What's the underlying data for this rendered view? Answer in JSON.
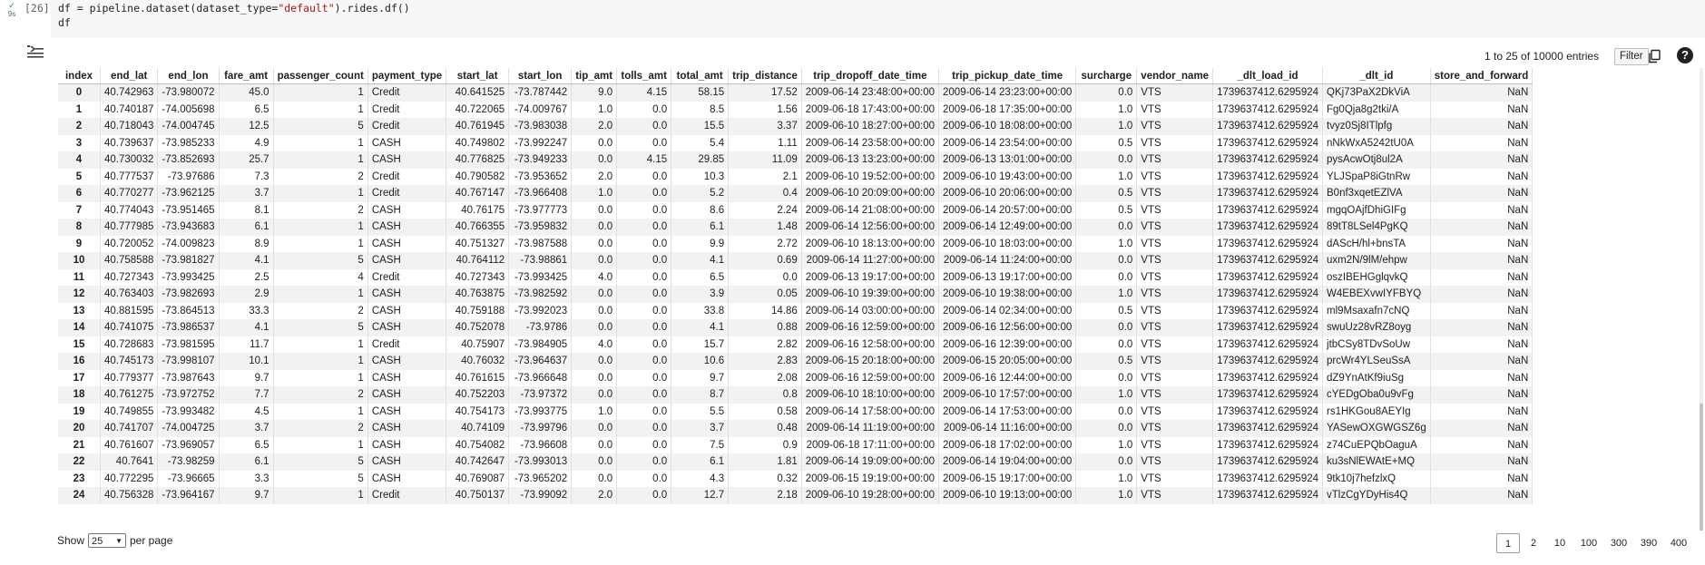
{
  "cell": {
    "status_check": "✓",
    "status_time": "9s",
    "exec_count": "[26]",
    "code_line1_a": "df = pipeline.dataset(dataset_type=",
    "code_line1_str": "\"default\"",
    "code_line1_b": ").rides.df()",
    "code_line2": "df"
  },
  "output": {
    "entries_text": "1 to 25 of 10000 entries",
    "filter_label": "Filter",
    "help_label": "?"
  },
  "table": {
    "columns": [
      "index",
      "end_lat",
      "end_lon",
      "fare_amt",
      "passenger_count",
      "payment_type",
      "start_lat",
      "start_lon",
      "tip_amt",
      "tolls_amt",
      "total_amt",
      "trip_distance",
      "trip_dropoff_date_time",
      "trip_pickup_date_time",
      "surcharge",
      "vendor_name",
      "_dlt_load_id",
      "_dlt_id",
      "store_and_forward"
    ],
    "rows": [
      [
        "0",
        "40.742963",
        "-73.980072",
        "45.0",
        "1",
        "Credit",
        "40.641525",
        "-73.787442",
        "9.0",
        "4.15",
        "58.15",
        "17.52",
        "2009-06-14 23:48:00+00:00",
        "2009-06-14 23:23:00+00:00",
        "0.0",
        "VTS",
        "1739637412.6295924",
        "QKj73PaX2DkViA",
        "NaN"
      ],
      [
        "1",
        "40.740187",
        "-74.005698",
        "6.5",
        "1",
        "Credit",
        "40.722065",
        "-74.009767",
        "1.0",
        "0.0",
        "8.5",
        "1.56",
        "2009-06-18 17:43:00+00:00",
        "2009-06-18 17:35:00+00:00",
        "1.0",
        "VTS",
        "1739637412.6295924",
        "Fg0Qja8g2tki/A",
        "NaN"
      ],
      [
        "2",
        "40.718043",
        "-74.004745",
        "12.5",
        "5",
        "Credit",
        "40.761945",
        "-73.983038",
        "2.0",
        "0.0",
        "15.5",
        "3.37",
        "2009-06-10 18:27:00+00:00",
        "2009-06-10 18:08:00+00:00",
        "1.0",
        "VTS",
        "1739637412.6295924",
        "tvyz0Sj8ITlpfg",
        "NaN"
      ],
      [
        "3",
        "40.739637",
        "-73.985233",
        "4.9",
        "1",
        "CASH",
        "40.749802",
        "-73.992247",
        "0.0",
        "0.0",
        "5.4",
        "1.11",
        "2009-06-14 23:58:00+00:00",
        "2009-06-14 23:54:00+00:00",
        "0.5",
        "VTS",
        "1739637412.6295924",
        "nNkWxA5242tU0A",
        "NaN"
      ],
      [
        "4",
        "40.730032",
        "-73.852693",
        "25.7",
        "1",
        "CASH",
        "40.776825",
        "-73.949233",
        "0.0",
        "4.15",
        "29.85",
        "11.09",
        "2009-06-13 13:23:00+00:00",
        "2009-06-13 13:01:00+00:00",
        "0.0",
        "VTS",
        "1739637412.6295924",
        "pysAcwOtj8ul2A",
        "NaN"
      ],
      [
        "5",
        "40.777537",
        "-73.97686",
        "7.3",
        "2",
        "Credit",
        "40.790582",
        "-73.953652",
        "2.0",
        "0.0",
        "10.3",
        "2.1",
        "2009-06-10 19:52:00+00:00",
        "2009-06-10 19:43:00+00:00",
        "1.0",
        "VTS",
        "1739637412.6295924",
        "YLJSpaP8iGtnRw",
        "NaN"
      ],
      [
        "6",
        "40.770277",
        "-73.962125",
        "3.7",
        "1",
        "Credit",
        "40.767147",
        "-73.966408",
        "1.0",
        "0.0",
        "5.2",
        "0.4",
        "2009-06-10 20:09:00+00:00",
        "2009-06-10 20:06:00+00:00",
        "0.5",
        "VTS",
        "1739637412.6295924",
        "B0nf3xqetEZlVA",
        "NaN"
      ],
      [
        "7",
        "40.774043",
        "-73.951465",
        "8.1",
        "2",
        "CASH",
        "40.76175",
        "-73.977773",
        "0.0",
        "0.0",
        "8.6",
        "2.24",
        "2009-06-14 21:08:00+00:00",
        "2009-06-14 20:57:00+00:00",
        "0.5",
        "VTS",
        "1739637412.6295924",
        "mgqOAjfDhiGIFg",
        "NaN"
      ],
      [
        "8",
        "40.777985",
        "-73.943683",
        "6.1",
        "1",
        "CASH",
        "40.766355",
        "-73.959832",
        "0.0",
        "0.0",
        "6.1",
        "1.48",
        "2009-06-14 12:56:00+00:00",
        "2009-06-14 12:49:00+00:00",
        "0.0",
        "VTS",
        "1739637412.6295924",
        "89tT8LSel4PgKQ",
        "NaN"
      ],
      [
        "9",
        "40.720052",
        "-74.009823",
        "8.9",
        "1",
        "CASH",
        "40.751327",
        "-73.987588",
        "0.0",
        "0.0",
        "9.9",
        "2.72",
        "2009-06-10 18:13:00+00:00",
        "2009-06-10 18:03:00+00:00",
        "1.0",
        "VTS",
        "1739637412.6295924",
        "dAScH/hl+bnsTA",
        "NaN"
      ],
      [
        "10",
        "40.758588",
        "-73.981827",
        "4.1",
        "5",
        "CASH",
        "40.764112",
        "-73.98861",
        "0.0",
        "0.0",
        "4.1",
        "0.69",
        "2009-06-14 11:27:00+00:00",
        "2009-06-14 11:24:00+00:00",
        "0.0",
        "VTS",
        "1739637412.6295924",
        "uxm2N/9lM/ehpw",
        "NaN"
      ],
      [
        "11",
        "40.727343",
        "-73.993425",
        "2.5",
        "4",
        "Credit",
        "40.727343",
        "-73.993425",
        "4.0",
        "0.0",
        "6.5",
        "0.0",
        "2009-06-13 19:17:00+00:00",
        "2009-06-13 19:17:00+00:00",
        "0.0",
        "VTS",
        "1739637412.6295924",
        "oszIBEHGglqvkQ",
        "NaN"
      ],
      [
        "12",
        "40.763403",
        "-73.982693",
        "2.9",
        "1",
        "CASH",
        "40.763875",
        "-73.982592",
        "0.0",
        "0.0",
        "3.9",
        "0.05",
        "2009-06-10 19:39:00+00:00",
        "2009-06-10 19:38:00+00:00",
        "1.0",
        "VTS",
        "1739637412.6295924",
        "W4EBEXvwIYFBYQ",
        "NaN"
      ],
      [
        "13",
        "40.881595",
        "-73.864513",
        "33.3",
        "2",
        "CASH",
        "40.759188",
        "-73.992023",
        "0.0",
        "0.0",
        "33.8",
        "14.86",
        "2009-06-14 03:00:00+00:00",
        "2009-06-14 02:34:00+00:00",
        "0.5",
        "VTS",
        "1739637412.6295924",
        "ml9Msaxafn7cNQ",
        "NaN"
      ],
      [
        "14",
        "40.741075",
        "-73.986537",
        "4.1",
        "5",
        "CASH",
        "40.752078",
        "-73.9786",
        "0.0",
        "0.0",
        "4.1",
        "0.88",
        "2009-06-16 12:59:00+00:00",
        "2009-06-16 12:56:00+00:00",
        "0.0",
        "VTS",
        "1739637412.6295924",
        "swuUz28vRZ8oyg",
        "NaN"
      ],
      [
        "15",
        "40.728683",
        "-73.981595",
        "11.7",
        "1",
        "Credit",
        "40.75907",
        "-73.984905",
        "4.0",
        "0.0",
        "15.7",
        "2.82",
        "2009-06-16 12:58:00+00:00",
        "2009-06-16 12:39:00+00:00",
        "0.0",
        "VTS",
        "1739637412.6295924",
        "jtbCSy8TDvSoUw",
        "NaN"
      ],
      [
        "16",
        "40.745173",
        "-73.998107",
        "10.1",
        "1",
        "CASH",
        "40.76032",
        "-73.964637",
        "0.0",
        "0.0",
        "10.6",
        "2.83",
        "2009-06-15 20:18:00+00:00",
        "2009-06-15 20:05:00+00:00",
        "0.5",
        "VTS",
        "1739637412.6295924",
        "prcWr4YLSeuSsA",
        "NaN"
      ],
      [
        "17",
        "40.779377",
        "-73.987643",
        "9.7",
        "1",
        "CASH",
        "40.761615",
        "-73.966648",
        "0.0",
        "0.0",
        "9.7",
        "2.08",
        "2009-06-16 12:59:00+00:00",
        "2009-06-16 12:44:00+00:00",
        "0.0",
        "VTS",
        "1739637412.6295924",
        "dZ9YnAtKf9iuSg",
        "NaN"
      ],
      [
        "18",
        "40.761275",
        "-73.972752",
        "7.7",
        "2",
        "CASH",
        "40.752203",
        "-73.97372",
        "0.0",
        "0.0",
        "8.7",
        "0.8",
        "2009-06-10 18:10:00+00:00",
        "2009-06-10 17:57:00+00:00",
        "1.0",
        "VTS",
        "1739637412.6295924",
        "cYEDgOba0u9vFg",
        "NaN"
      ],
      [
        "19",
        "40.749855",
        "-73.993482",
        "4.5",
        "1",
        "CASH",
        "40.754173",
        "-73.993775",
        "1.0",
        "0.0",
        "5.5",
        "0.58",
        "2009-06-14 17:58:00+00:00",
        "2009-06-14 17:53:00+00:00",
        "0.0",
        "VTS",
        "1739637412.6295924",
        "rs1HKGou8AEYIg",
        "NaN"
      ],
      [
        "20",
        "40.741707",
        "-74.004725",
        "3.7",
        "2",
        "CASH",
        "40.74109",
        "-73.99796",
        "0.0",
        "0.0",
        "3.7",
        "0.48",
        "2009-06-14 11:19:00+00:00",
        "2009-06-14 11:16:00+00:00",
        "0.0",
        "VTS",
        "1739637412.6295924",
        "YASewOXGWGSZ6g",
        "NaN"
      ],
      [
        "21",
        "40.761607",
        "-73.969057",
        "6.5",
        "1",
        "CASH",
        "40.754082",
        "-73.96608",
        "0.0",
        "0.0",
        "7.5",
        "0.9",
        "2009-06-18 17:11:00+00:00",
        "2009-06-18 17:02:00+00:00",
        "1.0",
        "VTS",
        "1739637412.6295924",
        "z74CuEPQbOaguA",
        "NaN"
      ],
      [
        "22",
        "40.7641",
        "-73.98259",
        "6.1",
        "5",
        "CASH",
        "40.742647",
        "-73.993013",
        "0.0",
        "0.0",
        "6.1",
        "1.81",
        "2009-06-14 19:09:00+00:00",
        "2009-06-14 19:04:00+00:00",
        "0.0",
        "VTS",
        "1739637412.6295924",
        "ku3sNlEWAtE+MQ",
        "NaN"
      ],
      [
        "23",
        "40.772295",
        "-73.96665",
        "3.3",
        "5",
        "CASH",
        "40.769087",
        "-73.965202",
        "0.0",
        "0.0",
        "4.3",
        "0.32",
        "2009-06-15 19:19:00+00:00",
        "2009-06-15 19:17:00+00:00",
        "1.0",
        "VTS",
        "1739637412.6295924",
        "9tk10j7hefzlxQ",
        "NaN"
      ],
      [
        "24",
        "40.756328",
        "-73.964167",
        "9.7",
        "1",
        "Credit",
        "40.750137",
        "-73.99092",
        "2.0",
        "0.0",
        "12.7",
        "2.18",
        "2009-06-10 19:28:00+00:00",
        "2009-06-10 19:13:00+00:00",
        "1.0",
        "VTS",
        "1739637412.6295924",
        "vTlzCgYDyHis4Q",
        "NaN"
      ]
    ]
  },
  "footer": {
    "show_label": "Show",
    "page_size": "25",
    "per_page_label": "per page",
    "pages": [
      "1",
      "2",
      "10",
      "100",
      "300",
      "390",
      "400"
    ],
    "active_page": "1"
  }
}
